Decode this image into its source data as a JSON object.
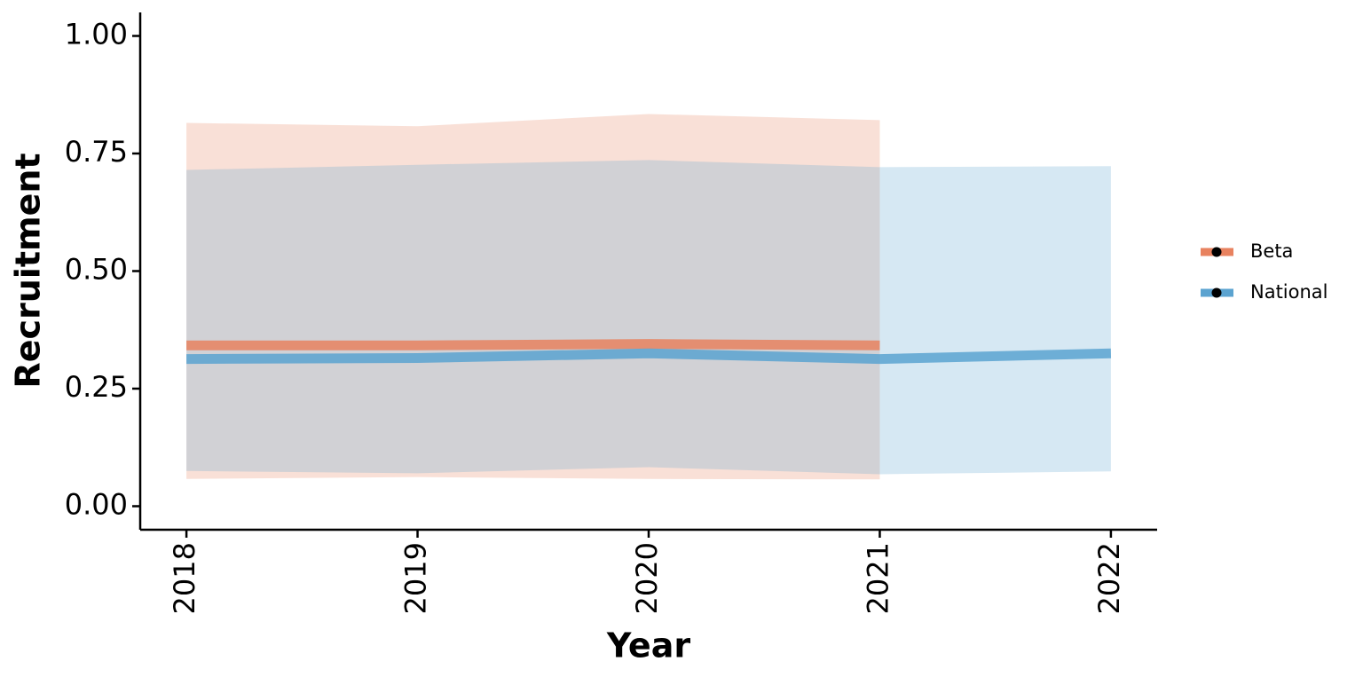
{
  "chart_data": {
    "type": "line",
    "x_label": "Year",
    "y_label": "Recruitment",
    "x": [
      2018,
      2019,
      2020,
      2021,
      2022
    ],
    "series": [
      {
        "name": "Beta",
        "color": "#e8825f",
        "values": [
          0.342,
          0.342,
          0.345,
          0.342,
          null
        ],
        "upper": [
          0.815,
          0.808,
          0.834,
          0.821,
          null
        ],
        "lower": [
          0.058,
          0.062,
          0.058,
          0.057,
          null
        ]
      },
      {
        "name": "National",
        "color": "#5ba3d0",
        "values": [
          0.313,
          0.315,
          0.325,
          0.313,
          0.325
        ],
        "upper": [
          0.715,
          0.726,
          0.736,
          0.721,
          0.723
        ],
        "lower": [
          0.075,
          0.07,
          0.083,
          0.068,
          0.074
        ]
      }
    ],
    "xlim": [
      2017.8,
      2022.2
    ],
    "ylim": [
      -0.05,
      1.05
    ],
    "xticks": [
      2018,
      2019,
      2020,
      2021,
      2022
    ],
    "yticks": [
      {
        "value": 0,
        "label": "0.00"
      },
      {
        "value": 0.25,
        "label": "0.25"
      },
      {
        "value": 0.5,
        "label": "0.50"
      },
      {
        "value": 0.75,
        "label": "0.75"
      },
      {
        "value": 1,
        "label": "1.00"
      }
    ],
    "legend": "right",
    "grid": false
  }
}
